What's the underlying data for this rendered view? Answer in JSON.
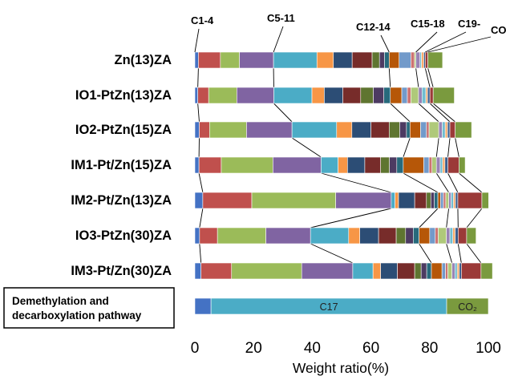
{
  "chart_data": {
    "type": "bar",
    "orientation": "horizontal",
    "stacked": true,
    "xlabel": "Weight ratio(%)",
    "xlim": [
      0,
      100
    ],
    "xticks": [
      0,
      20,
      40,
      60,
      80,
      100
    ],
    "grid": false,
    "group_labels": [
      "C1-4",
      "C5-11",
      "C12-14",
      "C15-18",
      "C19-",
      "CO"
    ],
    "segment_colors": [
      "#4472C4",
      "#C0504D",
      "#9BBB59",
      "#8064A2",
      "#4BACC6",
      "#F79646",
      "#2C4D75",
      "#772C2A",
      "#5F7530",
      "#4D3B62",
      "#276A7C",
      "#B65708",
      "#729ACA",
      "#CD7371",
      "#AFC97A",
      "#9983B5",
      "#6FBDD1",
      "#F9AB6B",
      "#3A5F8F",
      "#9B3A38",
      "#7A9A3E"
    ],
    "categories": [
      "Zn(13)ZA",
      "IO1-PtZn(13)ZA",
      "IO2-PtZn(15)ZA",
      "IM1-Pt/Zn(15)ZA",
      "IM2-Pt/Zn(13)ZA",
      "IO3-PtZn(30)ZA",
      "IM3-Pt/Zn(30)ZA"
    ],
    "rows": [
      {
        "name": "Zn(13)ZA",
        "values": [
          1.2,
          7.5,
          6.5,
          11.6,
          14.8,
          5.6,
          6.4,
          6.8,
          2.5,
          1.7,
          1.6,
          3.4,
          4.0,
          1.2,
          0.5,
          1.4,
          0.5,
          0.8,
          0.5,
          0.9,
          5.0
        ]
      },
      {
        "name": "IO1-PtZn(13)ZA",
        "values": [
          1.0,
          3.7,
          9.6,
          12.6,
          13.0,
          4.2,
          6.3,
          6.1,
          4.3,
          3.6,
          2.2,
          3.9,
          1.9,
          1.2,
          2.6,
          1.2,
          1.3,
          0.6,
          0.8,
          1.1,
          7.2
        ]
      },
      {
        "name": "IO2-PtZn(15)ZA",
        "values": [
          1.5,
          3.5,
          12.6,
          15.5,
          15.2,
          5.2,
          6.5,
          6.2,
          3.6,
          2.3,
          1.2,
          3.6,
          2.0,
          0.9,
          3.3,
          1.2,
          1.0,
          0.8,
          0.8,
          1.8,
          5.6
        ]
      },
      {
        "name": "IM1-Pt/Zn(15)ZA",
        "values": [
          1.4,
          7.6,
          17.6,
          16.4,
          5.8,
          3.2,
          5.9,
          5.4,
          3.0,
          2.5,
          2.2,
          7.0,
          1.8,
          1.0,
          1.5,
          1.3,
          0.8,
          0.8,
          1.0,
          3.8,
          2.1
        ]
      },
      {
        "name": "IM2-Pt/Zn(13)ZA",
        "values": [
          2.7,
          16.7,
          28.6,
          18.9,
          1.3,
          1.2,
          5.5,
          4.0,
          1.5,
          1.2,
          1.2,
          0.9,
          1.0,
          0.8,
          1.0,
          0.8,
          0.8,
          0.7,
          0.8,
          8.2,
          2.3
        ]
      },
      {
        "name": "IO3-PtZn(30)ZA",
        "values": [
          1.6,
          6.1,
          16.5,
          15.2,
          13.0,
          3.8,
          6.4,
          6.0,
          3.2,
          2.6,
          2.0,
          3.6,
          1.9,
          1.0,
          2.8,
          1.2,
          1.0,
          0.8,
          1.0,
          2.9,
          3.2
        ]
      },
      {
        "name": "IM3-Pt/Zn(30)ZA",
        "values": [
          2.1,
          10.4,
          23.9,
          17.4,
          6.9,
          2.6,
          5.7,
          5.9,
          2.2,
          1.9,
          1.6,
          3.6,
          1.2,
          0.8,
          1.4,
          1.0,
          0.8,
          0.7,
          0.7,
          6.7,
          3.9
        ]
      }
    ],
    "pathway": {
      "label_line1": "Demethylation and",
      "label_line2": "decarboxylation pathway",
      "segments": [
        {
          "value": 5.5,
          "color": "#4472C4",
          "label": ""
        },
        {
          "value": 80.3,
          "color": "#4BACC6",
          "label": "C17"
        },
        {
          "value": 14.2,
          "color": "#7A9A3E",
          "label": "CO₂"
        }
      ]
    }
  }
}
